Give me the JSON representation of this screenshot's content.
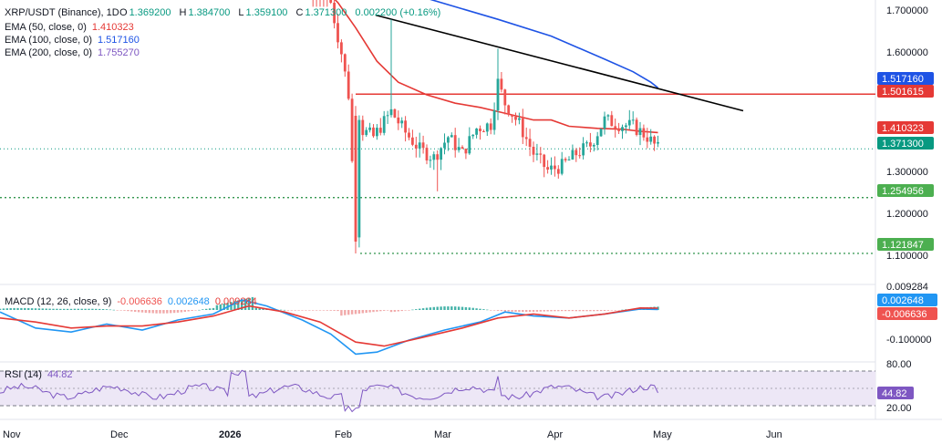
{
  "colors": {
    "up": "#26a69a",
    "down": "#ef5350",
    "ema50": "#e53935",
    "ema100": "#1e53e5",
    "ema200": "#7e57c2",
    "trendline": "#000000",
    "resistance": "#e53935",
    "support": "#1b8a3a",
    "macd": "#2196f3",
    "signal": "#e53935",
    "rsi": "#7e57c2",
    "rsi_band": "#ede7f6"
  },
  "header": {
    "symbol": "XRP/USDT (Binance), 1D",
    "o_label": "O",
    "o_value": "1.369200",
    "h_label": "H",
    "h_value": "1.384700",
    "l_label": "L",
    "l_value": "1.359100",
    "c_label": "C",
    "c_value": "1.371300",
    "change": "0.002200 (+0.16%)",
    "ema50_label": "EMA (50, close, 0)",
    "ema50_value": "1.410323",
    "ema100_label": "EMA (100, close, 0)",
    "ema100_value": "1.517160",
    "ema200_label": "EMA (200, close, 0)",
    "ema200_value": "1.755270"
  },
  "macd_header": {
    "label": "MACD (12, 26, close, 9)",
    "hist_value": "-0.006636",
    "macd_value": "0.002648",
    "signal_value": "0.009284"
  },
  "rsi_header": {
    "label": "RSI (14)",
    "value": "44.82"
  },
  "chart_data": [
    {
      "type": "candlestick",
      "title": "XRP/USDT (Binance), 1D",
      "x_labels": [
        "Nov",
        "Dec",
        "2026",
        "Feb",
        "Mar",
        "Apr",
        "May",
        "Jun"
      ],
      "y_ticks": [
        "1.700000",
        "1.600000",
        "1.300000",
        "1.200000",
        "1.100000"
      ],
      "ylim": [
        1.09,
        1.72
      ],
      "grid": false,
      "series_close_sample": [
        {
          "x": "Feb 1",
          "close": 1.62
        },
        {
          "x": "Feb 5",
          "close": 1.15
        },
        {
          "x": "Feb 6",
          "close": 1.44
        },
        {
          "x": "Feb 14",
          "close": 1.42
        },
        {
          "x": "Feb 28",
          "close": 1.38
        },
        {
          "x": "Mar 15",
          "close": 1.41
        },
        {
          "x": "Mar 19",
          "close": 1.53
        },
        {
          "x": "Mar 31",
          "close": 1.33
        },
        {
          "x": "Apr 15",
          "close": 1.34
        },
        {
          "x": "Apr 20",
          "close": 1.44
        },
        {
          "x": "Apr 28",
          "close": 1.41
        },
        {
          "x": "May 1",
          "close": 1.3713
        }
      ],
      "lines": {
        "resistance": 1.501615,
        "support_1": 1.254956,
        "support_2": 1.121847,
        "last_price": 1.3713
      },
      "trendline": {
        "from": {
          "x": "Feb 10",
          "y": 1.69
        },
        "to": {
          "x": "May 22",
          "y": 1.46
        }
      },
      "ema": [
        {
          "name": "EMA (50, close, 0)",
          "last": 1.410323
        },
        {
          "name": "EMA (100, close, 0)",
          "last": 1.51716
        },
        {
          "name": "EMA (200, close, 0)",
          "last": 1.75527
        }
      ],
      "price_tags": [
        "1.517160",
        "1.501615",
        "1.410323",
        "1.371300",
        "1.254956",
        "1.121847"
      ]
    },
    {
      "type": "line",
      "title": "MACD (12, 26, close, 9)",
      "y_ticks": [
        "0.009284",
        "-0.100000"
      ],
      "value_tags": [
        "0.002648",
        "-0.006636"
      ],
      "series": [
        {
          "name": "MACD",
          "last": 0.002648
        },
        {
          "name": "Signal",
          "last": 0.009284
        },
        {
          "name": "Histogram",
          "last": -0.006636
        }
      ]
    },
    {
      "type": "line",
      "title": "RSI (14)",
      "y_ticks": [
        "80.00",
        "20.00"
      ],
      "band": [
        30,
        70
      ],
      "value_tags": [
        "44.82"
      ],
      "series": [
        {
          "name": "RSI",
          "last": 44.82
        }
      ]
    }
  ]
}
